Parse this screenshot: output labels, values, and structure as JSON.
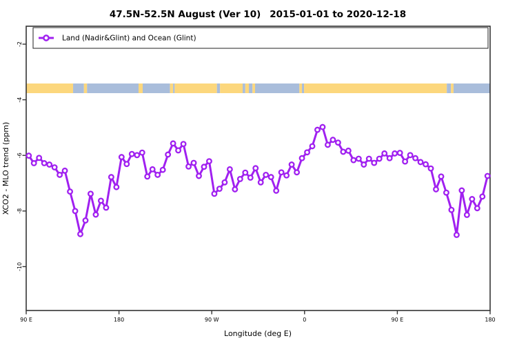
{
  "title": {
    "main": "47.5N-52.5N August (Ver 10)",
    "dates": "2015-01-01 to 2020-12-18"
  },
  "legend": {
    "label": "Land (Nadir&Glint) and Ocean (Glint)"
  },
  "axes": {
    "x": {
      "label": "Longitude (deg E)",
      "ticks": [
        {
          "pos": 90,
          "label": "90 E"
        },
        {
          "pos": 180,
          "label": "180"
        },
        {
          "pos": 270,
          "label": "90 W"
        },
        {
          "pos": 360,
          "label": "0"
        },
        {
          "pos": 450,
          "label": "90 E"
        },
        {
          "pos": 540,
          "label": "180"
        }
      ]
    },
    "y": {
      "label": "XCO2 - MLO trend (ppm)",
      "ticks": [
        -2,
        -4,
        -6,
        -8,
        -10
      ]
    }
  },
  "colors": {
    "series": "#A020F0",
    "land": "#FCD77D",
    "ocean": "#A9BDDB",
    "axis": "#333333"
  },
  "chart_data": {
    "type": "line",
    "title": "47.5N-52.5N August (Ver 10)   2015-01-01 to 2020-12-18",
    "xlabel": "Longitude (deg E)",
    "ylabel": "XCO2 - MLO trend (ppm)",
    "xlim": [
      90,
      540
    ],
    "ylim": [
      -11.6,
      -1.35
    ],
    "grid": false,
    "legend_position": "top-left-full-width",
    "x_tick_labels": [
      "90 E",
      "180",
      "90 W",
      "0",
      "90 E",
      "180"
    ],
    "y_tick_values": [
      -2,
      -4,
      -6,
      -8,
      -10
    ],
    "marker": "open-circle",
    "series": [
      {
        "name": "Land (Nadir&Glint) and Ocean (Glint)",
        "color": "#A020F0",
        "x": [
          92.5,
          97.5,
          102.5,
          107.5,
          112.5,
          117.5,
          122.5,
          127.5,
          132.5,
          137.5,
          142.5,
          147.5,
          152.5,
          157.5,
          162.5,
          167.5,
          172.5,
          177.5,
          182.5,
          187.5,
          192.5,
          197.5,
          202.5,
          207.5,
          212.5,
          217.5,
          222.5,
          227.5,
          232.5,
          237.5,
          242.5,
          247.5,
          252.5,
          257.5,
          262.5,
          267.5,
          272.5,
          277.5,
          282.5,
          287.5,
          292.5,
          297.5,
          302.5,
          307.5,
          312.5,
          317.5,
          322.5,
          327.5,
          332.5,
          337.5,
          342.5,
          347.5,
          352.5,
          357.5,
          362.5,
          367.5,
          372.5,
          377.5,
          382.5,
          387.5,
          392.5,
          397.5,
          402.5,
          407.5,
          412.5,
          417.5,
          422.5,
          427.5,
          432.5,
          437.5,
          442.5,
          447.5,
          452.5,
          457.5,
          462.5,
          467.5,
          472.5,
          477.5,
          482.5,
          487.5,
          492.5,
          497.5,
          502.5,
          507.5,
          512.5,
          517.5,
          522.5,
          527.5,
          532.5,
          537.5
        ],
        "y": [
          -6.01,
          -6.28,
          -6.09,
          -6.28,
          -6.33,
          -6.43,
          -6.7,
          -6.55,
          -7.3,
          -8.0,
          -8.83,
          -8.34,
          -7.38,
          -8.13,
          -7.63,
          -7.88,
          -6.78,
          -7.14,
          -6.06,
          -6.31,
          -5.95,
          -5.99,
          -5.9,
          -6.76,
          -6.5,
          -6.7,
          -6.52,
          -5.97,
          -5.57,
          -5.82,
          -5.59,
          -6.4,
          -6.27,
          -6.74,
          -6.41,
          -6.21,
          -7.38,
          -7.2,
          -6.97,
          -6.5,
          -7.22,
          -6.85,
          -6.62,
          -6.8,
          -6.46,
          -6.97,
          -6.7,
          -6.78,
          -7.27,
          -6.61,
          -6.72,
          -6.33,
          -6.61,
          -6.1,
          -5.89,
          -5.67,
          -5.08,
          -4.98,
          -5.62,
          -5.44,
          -5.54,
          -5.87,
          -5.83,
          -6.17,
          -6.12,
          -6.33,
          -6.12,
          -6.27,
          -6.12,
          -5.93,
          -6.1,
          -5.93,
          -5.91,
          -6.22,
          -5.99,
          -6.1,
          -6.24,
          -6.32,
          -6.47,
          -7.22,
          -6.76,
          -7.34,
          -7.96,
          -8.86,
          -7.26,
          -8.14,
          -7.57,
          -7.9,
          -7.48,
          -6.74
        ]
      }
    ],
    "surface_band": [
      {
        "from": 90,
        "to": 135.5,
        "surface": "land"
      },
      {
        "from": 135.5,
        "to": 146,
        "surface": "ocean"
      },
      {
        "from": 146,
        "to": 149,
        "surface": "land"
      },
      {
        "from": 149,
        "to": 199,
        "surface": "ocean"
      },
      {
        "from": 199,
        "to": 203,
        "surface": "land"
      },
      {
        "from": 203,
        "to": 229.5,
        "surface": "ocean"
      },
      {
        "from": 229.5,
        "to": 232.5,
        "surface": "land"
      },
      {
        "from": 232.5,
        "to": 234,
        "surface": "ocean"
      },
      {
        "from": 234,
        "to": 275,
        "surface": "land"
      },
      {
        "from": 275,
        "to": 278,
        "surface": "ocean"
      },
      {
        "from": 278,
        "to": 300,
        "surface": "land"
      },
      {
        "from": 300,
        "to": 302.5,
        "surface": "ocean"
      },
      {
        "from": 302.5,
        "to": 306,
        "surface": "land"
      },
      {
        "from": 306,
        "to": 309.5,
        "surface": "ocean"
      },
      {
        "from": 309.5,
        "to": 312,
        "surface": "land"
      },
      {
        "from": 312,
        "to": 355,
        "surface": "ocean"
      },
      {
        "from": 355,
        "to": 357.5,
        "surface": "land"
      },
      {
        "from": 357.5,
        "to": 359.5,
        "surface": "ocean"
      },
      {
        "from": 359.5,
        "to": 498,
        "surface": "land"
      },
      {
        "from": 498,
        "to": 502,
        "surface": "ocean"
      },
      {
        "from": 502,
        "to": 504.5,
        "surface": "land"
      },
      {
        "from": 504.5,
        "to": 540,
        "surface": "ocean"
      }
    ]
  }
}
